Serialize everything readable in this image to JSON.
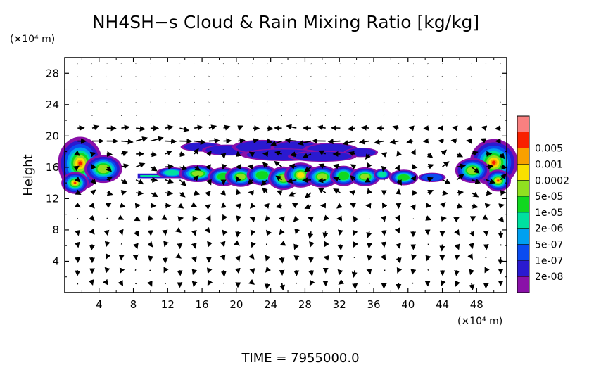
{
  "chart_data": {
    "type": "heatmap",
    "title": "NH4SH−s Cloud & Rain Mixing Ratio [kg/kg]",
    "ylabel": "Height",
    "xunit": "(×10⁴ m)",
    "yunit": "(×10⁴ m)",
    "footer": "TIME  =  7955000.0",
    "xlim": [
      0,
      51.5
    ],
    "ylim": [
      0,
      30
    ],
    "xticks": [
      4,
      8,
      12,
      16,
      20,
      24,
      28,
      32,
      36,
      40,
      44,
      48
    ],
    "yticks": [
      4,
      8,
      12,
      16,
      20,
      24,
      28
    ],
    "colorbar": {
      "levels": [
        "2e-08",
        "1e-07",
        "5e-07",
        "2e-06",
        "1e-05",
        "5e-05",
        "0.0002",
        "0.001",
        "0.005"
      ],
      "colors": [
        "#8a10a8",
        "#2a1ad0",
        "#0a4cf0",
        "#00a0f0",
        "#00e0a0",
        "#10d820",
        "#90e020",
        "#f8e000",
        "#f8a000",
        "#f82000",
        "#f88080"
      ]
    },
    "regions": [
      {
        "name": "left-edge-storm",
        "x": [
          0,
          6.5
        ],
        "y": [
          12.8,
          20.2
        ],
        "peak": "0.001"
      },
      {
        "name": "upper-anvil",
        "x": [
          14,
          36
        ],
        "y": [
          16.5,
          19.2
        ],
        "peak": "1e-07"
      },
      {
        "name": "main-cloud-band",
        "x": [
          8.5,
          37
        ],
        "y": [
          13.2,
          16.8
        ],
        "peak": "0.0002"
      },
      {
        "name": "cloud-cell-39",
        "x": [
          37.5,
          41.5
        ],
        "y": [
          13.5,
          15.8
        ],
        "peak": "5e-05"
      },
      {
        "name": "cloud-cell-43",
        "x": [
          41,
          44.5
        ],
        "y": [
          14,
          15.2
        ],
        "peak": "1e-07"
      },
      {
        "name": "right-edge-storm",
        "x": [
          45.5,
          51.5
        ],
        "y": [
          13,
          20
        ],
        "peak": "0.001"
      }
    ],
    "wind_vectors": "quiver field of horizontal and vertical winds over the full domain; strongest arrows between heights 9 and 21"
  }
}
